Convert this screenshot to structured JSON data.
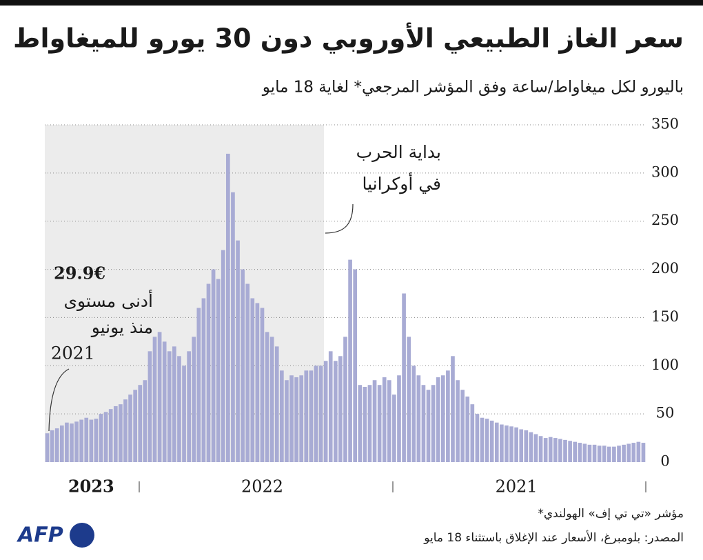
{
  "chart_data": {
    "type": "bar",
    "title": "سعر الغاز الطبيعي الأوروبي دون 30 يورو للميغاواط",
    "subtitle": "باليورو لكل ميغاواط/ساعة وفق المؤشر المرجعي* لغاية 18 مايو",
    "annotation_war": [
      "بداية الحرب",
      "في أوكرانيا"
    ],
    "low_label": {
      "text": "29.9€",
      "note": [
        "أدنى مستوى",
        "منذ يونيو",
        "2021"
      ]
    },
    "footnote": "*مؤشر «تي تي إف» الهولندي",
    "source": "المصدر: بلومبرغ، الأسعار عند الإغلاق باستثناء 18 مايو",
    "logo": "AFP",
    "reversed_x": true,
    "color": "#a8abd4",
    "grid": true,
    "ylim": [
      0,
      350
    ],
    "yticks": [
      0,
      50,
      100,
      150,
      200,
      250,
      300,
      350
    ],
    "categories": [
      null,
      null,
      null,
      null,
      null,
      null,
      null,
      null,
      null,
      null,
      null,
      null,
      null,
      null,
      null,
      null,
      null,
      null,
      null,
      null,
      null,
      null,
      null,
      null,
      null,
      null,
      "2021",
      null,
      null,
      null,
      null,
      null,
      null,
      null,
      null,
      null,
      null,
      null,
      null,
      null,
      null,
      null,
      null,
      null,
      null,
      null,
      null,
      null,
      null,
      null,
      null,
      null,
      null,
      null,
      null,
      null,
      null,
      null,
      null,
      null,
      null,
      null,
      null,
      null,
      null,
      null,
      null,
      null,
      null,
      null,
      null,
      null,
      null,
      null,
      null,
      null,
      null,
      null,
      "2022",
      null,
      null,
      null,
      null,
      null,
      null,
      null,
      null,
      null,
      null,
      null,
      null,
      null,
      null,
      null,
      null,
      null,
      null,
      null,
      null,
      null,
      null,
      null,
      null,
      null,
      null,
      null,
      null,
      null,
      null,
      null,
      null,
      null,
      null,
      "2023",
      null,
      null,
      null,
      null,
      null,
      null,
      null,
      null,
      null
    ],
    "values": [
      20,
      21,
      20,
      19,
      18,
      17,
      16,
      16,
      17,
      17,
      18,
      18,
      19,
      20,
      21,
      22,
      23,
      24,
      25,
      26,
      25,
      27,
      29,
      31,
      33,
      34,
      36,
      37,
      38,
      39,
      41,
      43,
      45,
      46,
      50,
      60,
      68,
      75,
      85,
      110,
      95,
      90,
      88,
      80,
      75,
      80,
      90,
      100,
      130,
      175,
      90,
      70,
      85,
      88,
      80,
      85,
      80,
      78,
      80,
      200,
      210,
      130,
      110,
      105,
      115,
      105,
      100,
      100,
      95,
      95,
      90,
      88,
      90,
      85,
      95,
      120,
      130,
      135,
      160,
      165,
      170,
      185,
      200,
      230,
      280,
      320,
      220,
      190,
      200,
      185,
      170,
      160,
      130,
      115,
      100,
      110,
      120,
      115,
      125,
      135,
      130,
      115,
      85,
      80,
      75,
      70,
      65,
      60,
      58,
      55,
      52,
      50,
      45,
      44,
      46,
      44,
      42,
      40,
      41,
      38,
      35,
      33,
      29.9
    ]
  }
}
